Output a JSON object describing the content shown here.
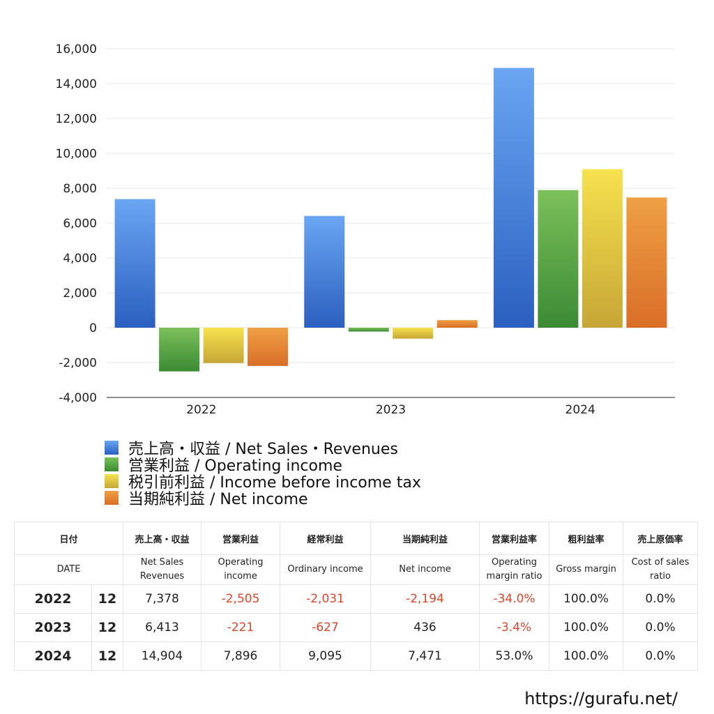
{
  "chart_data": {
    "type": "bar",
    "categories": [
      "2022",
      "2023",
      "2024"
    ],
    "series": [
      {
        "name": "売上高・収益 / Net Sales・Revenues",
        "values": [
          7378,
          6413,
          14904
        ],
        "color": "#3b78d6"
      },
      {
        "name": "営業利益 / Operating income",
        "values": [
          -2505,
          -221,
          7896
        ],
        "color": "#4a9e3f"
      },
      {
        "name": "税引前利益 / Income before income tax",
        "values": [
          -2031,
          -627,
          9095
        ],
        "color": "#e2c93a"
      },
      {
        "name": "当期純利益 / Net income",
        "values": [
          -2194,
          436,
          7471
        ],
        "color": "#e0822e"
      }
    ],
    "ylim": [
      -4000,
      16000
    ],
    "yticks": [
      -4000,
      -2000,
      0,
      2000,
      4000,
      6000,
      8000,
      10000,
      12000,
      14000,
      16000
    ],
    "ytick_labels": [
      "-4,000",
      "-2,000",
      "0",
      "2,000",
      "4,000",
      "6,000",
      "8,000",
      "10,000",
      "12,000",
      "14,000",
      "16,000"
    ],
    "grid": true,
    "legend_position": "bottom-left",
    "title": "",
    "xlabel": "",
    "ylabel": ""
  },
  "table": {
    "header_jp": [
      "日付",
      "売上高・収益",
      "営業利益",
      "経常利益",
      "当期純利益",
      "営業利益率",
      "粗利益率",
      "売上原価率"
    ],
    "header_en": [
      "DATE",
      "Net Sales Revenues",
      "Operating income",
      "Ordinary income",
      "Net income",
      "Operating margin ratio",
      "Gross margin",
      "Cost of sales ratio"
    ],
    "rows": [
      {
        "year": "2022",
        "month": "12",
        "sales": "7,378",
        "operating": "-2,505",
        "ordinary": "-2,031",
        "net": "-2,194",
        "op_margin": "-34.0%",
        "gross": "100.0%",
        "cost": "0.0%"
      },
      {
        "year": "2023",
        "month": "12",
        "sales": "6,413",
        "operating": "-221",
        "ordinary": "-627",
        "net": "436",
        "op_margin": "-3.4%",
        "gross": "100.0%",
        "cost": "0.0%"
      },
      {
        "year": "2024",
        "month": "12",
        "sales": "14,904",
        "operating": "7,896",
        "ordinary": "9,095",
        "net": "7,471",
        "op_margin": "53.0%",
        "gross": "100.0%",
        "cost": "0.0%"
      }
    ]
  },
  "source": "https://gurafu.net/"
}
